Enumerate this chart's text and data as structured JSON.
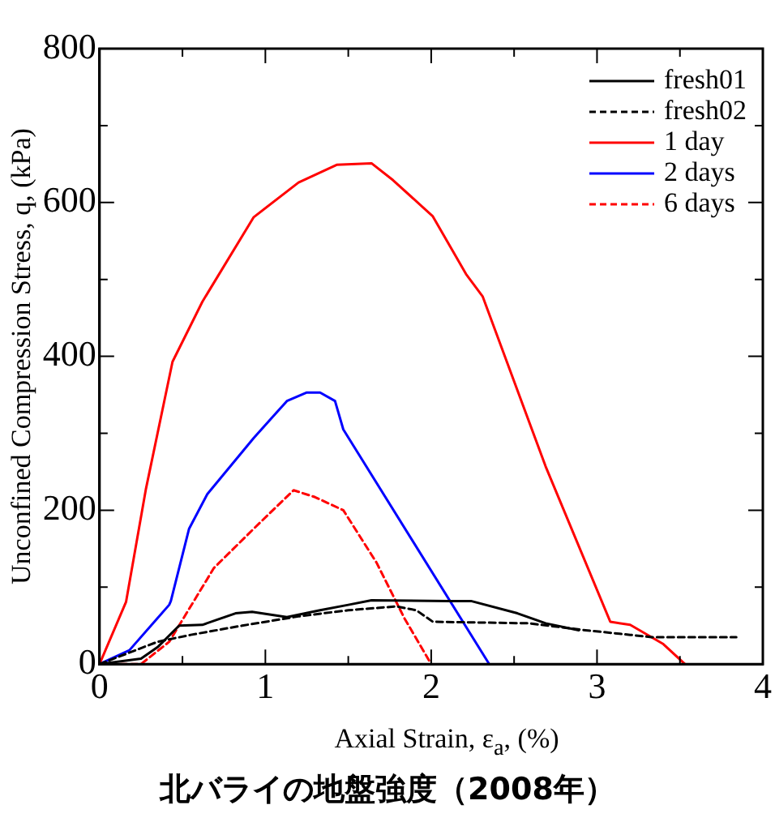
{
  "chart_data": {
    "type": "line",
    "title": "北バライの地盤強度（2008年）",
    "xlabel": "Axial Strain, ε$_{a}$, (%)",
    "ylabel": "Unconfined Compression Stress, q, (kPa)",
    "xlim": [
      0,
      4
    ],
    "ylim": [
      0,
      800
    ],
    "xticks": [
      0,
      {
        "value": 0.5,
        "label": null
      },
      1,
      {
        "value": 1.5,
        "label": null
      },
      2,
      {
        "value": 2.5,
        "label": null
      },
      3,
      {
        "value": 3.5,
        "label": null
      },
      4
    ],
    "yticks": [
      0,
      {
        "value": 100,
        "label": null
      },
      200,
      {
        "value": 300,
        "label": null
      },
      400,
      {
        "value": 500,
        "label": null
      },
      600,
      {
        "value": 700,
        "label": null
      },
      800
    ],
    "grid": false,
    "legend": "top right",
    "marker": "none",
    "series": [
      {
        "name": "fresh01",
        "color": "#000000",
        "line_style": "solid",
        "x": [
          0,
          0.25,
          0.35,
          0.48,
          0.62,
          0.82,
          0.92,
          1.13,
          1.33,
          1.5,
          1.64,
          2.11,
          2.24,
          2.52,
          2.69,
          2.89
        ],
        "values": [
          0,
          7,
          22,
          50,
          51,
          66,
          68,
          61,
          70,
          77,
          83,
          82,
          82,
          66,
          53,
          44
        ]
      },
      {
        "name": "fresh02",
        "color": "#000000",
        "line_style": "dashed",
        "x": [
          0,
          0.35,
          0.55,
          0.86,
          1.2,
          1.5,
          1.79,
          1.91,
          2.01,
          2.59,
          2.93,
          3.2,
          3.33,
          3.84
        ],
        "values": [
          0,
          29,
          38,
          50,
          62,
          70,
          75,
          70,
          55,
          53,
          44,
          38,
          35,
          35
        ]
      },
      {
        "name": "1 day",
        "color": "#ff0000",
        "line_style": "solid",
        "x": [
          0,
          0.16,
          0.28,
          0.44,
          0.62,
          0.93,
          1.2,
          1.43,
          1.64,
          1.77,
          2.01,
          2.21,
          2.31,
          2.69,
          3.08,
          3.2,
          3.4,
          3.53
        ],
        "values": [
          0,
          81,
          228,
          393,
          471,
          581,
          626,
          649,
          651,
          629,
          582,
          507,
          478,
          257,
          55,
          51,
          26,
          0
        ]
      },
      {
        "name": "2 days",
        "color": "#0000ff",
        "line_style": "solid",
        "x": [
          0,
          0.18,
          0.42,
          0.43,
          0.54,
          0.65,
          0.93,
          1.13,
          1.25,
          1.33,
          1.42,
          1.47,
          2.35
        ],
        "values": [
          0,
          18,
          77,
          82,
          176,
          221,
          294,
          342,
          353,
          353,
          342,
          305,
          0
        ]
      },
      {
        "name": "6 days",
        "color": "#ff0000",
        "line_style": "dashed",
        "x": [
          0,
          0.25,
          0.42,
          0.69,
          0.93,
          1.17,
          1.3,
          1.47,
          1.67,
          1.84,
          2.0
        ],
        "values": [
          0,
          0,
          29,
          125,
          176,
          226,
          217,
          200,
          132,
          59,
          0
        ]
      }
    ]
  }
}
